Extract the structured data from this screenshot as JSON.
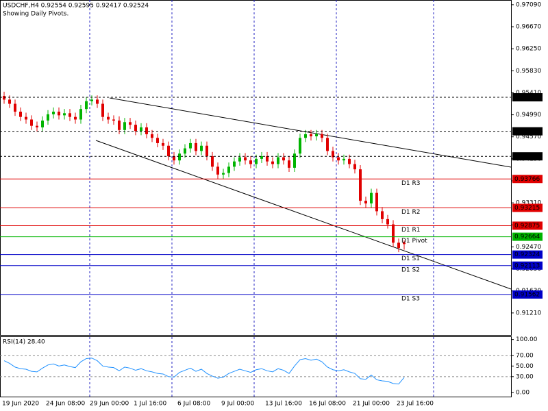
{
  "chart_data": [
    {
      "type": "candlestick",
      "title": "USDCHF,H4  0.92554 0.92595 0.92417 0.92524",
      "subtitle": "Showing Daily Pivots.",
      "categories": [
        "19 Jun 2020",
        null,
        null,
        null,
        null,
        null,
        null,
        null,
        "24 Jun 08:00",
        null,
        null,
        null,
        null,
        null,
        null,
        null,
        "29 Jun 00:00",
        null,
        null,
        null,
        null,
        null,
        null,
        null,
        "1 Jul 16:00",
        null,
        null,
        null,
        null,
        null,
        null,
        null,
        "6 Jul 08:00",
        null,
        null,
        null,
        null,
        null,
        null,
        null,
        "9 Jul 00:00",
        null,
        null,
        null,
        null,
        null,
        null,
        null,
        "13 Jul 16:00",
        null,
        null,
        null,
        null,
        null,
        null,
        null,
        "16 Jul 08:00",
        null,
        null,
        null,
        null,
        null,
        null,
        null,
        "21 Jul 00:00",
        null,
        null,
        null,
        null,
        null,
        null,
        null,
        "23 Jul 16:00",
        null
      ],
      "open": [
        0.9535,
        0.9528,
        0.952,
        0.9505,
        0.9495,
        0.949,
        0.9478,
        0.9475,
        0.9488,
        0.95,
        0.9505,
        0.9498,
        0.9502,
        0.9495,
        0.949,
        0.951,
        0.9525,
        0.9528,
        0.952,
        0.9495,
        0.949,
        0.9488,
        0.947,
        0.9485,
        0.948,
        0.9468,
        0.9475,
        0.9462,
        0.9455,
        0.9445,
        0.944,
        0.942,
        0.9412,
        0.9425,
        0.9435,
        0.9445,
        0.943,
        0.944,
        0.942,
        0.94,
        0.9385,
        0.9388,
        0.94,
        0.941,
        0.9418,
        0.9412,
        0.9405,
        0.9415,
        0.942,
        0.941,
        0.9405,
        0.9418,
        0.9412,
        0.9398,
        0.9425,
        0.9455,
        0.9462,
        0.9458,
        0.9462,
        0.9455,
        0.943,
        0.9418,
        0.9412,
        0.9415,
        0.9405,
        0.9395,
        0.9335,
        0.933,
        0.935,
        0.9315,
        0.93,
        0.929,
        0.9255,
        0.92554
      ],
      "high": [
        0.9543,
        0.9536,
        0.9528,
        0.9513,
        0.9503,
        0.9498,
        0.9486,
        0.9496,
        0.9508,
        0.9513,
        0.9513,
        0.951,
        0.951,
        0.9503,
        0.9518,
        0.9533,
        0.9536,
        0.9536,
        0.9528,
        0.9503,
        0.9498,
        0.9496,
        0.9493,
        0.9493,
        0.9488,
        0.9483,
        0.9483,
        0.947,
        0.9463,
        0.9453,
        0.9448,
        0.9428,
        0.9433,
        0.9443,
        0.9453,
        0.9453,
        0.9448,
        0.9448,
        0.9428,
        0.9408,
        0.9396,
        0.9408,
        0.9418,
        0.9426,
        0.9426,
        0.942,
        0.9423,
        0.9428,
        0.9428,
        0.9418,
        0.9426,
        0.9426,
        0.942,
        0.9433,
        0.9463,
        0.947,
        0.947,
        0.947,
        0.947,
        0.9463,
        0.9438,
        0.9426,
        0.9423,
        0.9423,
        0.9413,
        0.9403,
        0.9343,
        0.9358,
        0.9358,
        0.9323,
        0.9308,
        0.9298,
        0.9263,
        0.92595
      ],
      "low": [
        0.952,
        0.9512,
        0.9497,
        0.9487,
        0.9482,
        0.947,
        0.9467,
        0.9467,
        0.948,
        0.9492,
        0.949,
        0.949,
        0.9487,
        0.9482,
        0.9482,
        0.9502,
        0.9517,
        0.9512,
        0.9487,
        0.9482,
        0.948,
        0.9462,
        0.9462,
        0.9472,
        0.946,
        0.946,
        0.9454,
        0.9447,
        0.9437,
        0.9432,
        0.9412,
        0.9404,
        0.9404,
        0.9417,
        0.9427,
        0.9422,
        0.9422,
        0.9412,
        0.9392,
        0.9377,
        0.9377,
        0.938,
        0.9392,
        0.9402,
        0.9404,
        0.9397,
        0.9397,
        0.9407,
        0.9402,
        0.9397,
        0.9397,
        0.9404,
        0.939,
        0.939,
        0.9417,
        0.9447,
        0.945,
        0.945,
        0.9447,
        0.9422,
        0.941,
        0.9404,
        0.9404,
        0.9397,
        0.9387,
        0.9327,
        0.9322,
        0.9322,
        0.9307,
        0.9292,
        0.9282,
        0.9247,
        0.9237,
        0.92417
      ],
      "close": [
        0.9528,
        0.952,
        0.9505,
        0.9495,
        0.949,
        0.9478,
        0.9475,
        0.9488,
        0.95,
        0.9505,
        0.9498,
        0.9502,
        0.9495,
        0.949,
        0.951,
        0.9525,
        0.9528,
        0.952,
        0.9495,
        0.949,
        0.9488,
        0.947,
        0.9485,
        0.948,
        0.9468,
        0.9475,
        0.9462,
        0.9455,
        0.9445,
        0.944,
        0.942,
        0.9412,
        0.9425,
        0.9435,
        0.9445,
        0.943,
        0.944,
        0.942,
        0.94,
        0.9385,
        0.9388,
        0.94,
        0.941,
        0.9418,
        0.9412,
        0.9405,
        0.9415,
        0.942,
        0.941,
        0.9405,
        0.9418,
        0.9412,
        0.9398,
        0.9425,
        0.9455,
        0.9462,
        0.9458,
        0.9462,
        0.9455,
        0.943,
        0.9418,
        0.9412,
        0.9415,
        0.9405,
        0.9395,
        0.9335,
        0.933,
        0.935,
        0.9315,
        0.93,
        0.929,
        0.9255,
        0.9245,
        0.92524
      ],
      "up_color": "#00b400",
      "down_color": "#e00000",
      "ylim": [
        0.9079,
        0.9718
      ],
      "yticks": [
        {
          "value": 0.9709,
          "label": "0.97090"
        },
        {
          "value": 0.9667,
          "label": "0.96670"
        },
        {
          "value": 0.9625,
          "label": "0.96250"
        },
        {
          "value": 0.9583,
          "label": "0.95830"
        },
        {
          "value": 0.9541,
          "label": "0.95410"
        },
        {
          "value": 0.9499,
          "label": "0.94990"
        },
        {
          "value": 0.9457,
          "label": "0.94570"
        },
        {
          "value": 0.9415,
          "label": "0.94150"
        },
        {
          "value": 0.9373,
          "label": "0.93730"
        },
        {
          "value": 0.9331,
          "label": "0.93310"
        },
        {
          "value": 0.9289,
          "label": "0.92890"
        },
        {
          "value": 0.9247,
          "label": "0.92470"
        },
        {
          "value": 0.9205,
          "label": "0.92050"
        },
        {
          "value": 0.9163,
          "label": "0.91630"
        },
        {
          "value": 0.9121,
          "label": "0.91210"
        }
      ],
      "levels": [
        {
          "value": 0.95324,
          "color": "#000000"
        },
        {
          "value": 0.94675,
          "color": "#000000"
        },
        {
          "value": 0.94198,
          "color": "#000000"
        },
        {
          "name": "D1 R3",
          "value": 0.93766,
          "color": "#e00000"
        },
        {
          "name": "D1 R2",
          "value": 0.93215,
          "color": "#e00000"
        },
        {
          "name": "D1 R1",
          "value": 0.92875,
          "color": "#e00000"
        },
        {
          "name": "D1 Pivot",
          "value": 0.92664,
          "color": "#00b400"
        },
        {
          "name": "D1 S1",
          "value": 0.92324,
          "color": "#0000c8"
        },
        {
          "name": "D1 S2",
          "value": 0.92113,
          "color": "#0000c8"
        },
        {
          "name": "D1 S3",
          "value": 0.91562,
          "color": "#0000c8"
        }
      ]
    },
    {
      "type": "line",
      "title": "RSI(14) 28.40",
      "color": "#1e90ff",
      "values": [
        60,
        55,
        48,
        45,
        44,
        40,
        39,
        46,
        52,
        54,
        50,
        52,
        49,
        47,
        58,
        64,
        65,
        60,
        50,
        48,
        47,
        41,
        48,
        46,
        42,
        45,
        41,
        39,
        36,
        35,
        30,
        29,
        38,
        42,
        46,
        40,
        44,
        36,
        31,
        27,
        29,
        36,
        40,
        44,
        41,
        38,
        43,
        45,
        41,
        39,
        45,
        42,
        36,
        50,
        62,
        64,
        61,
        63,
        58,
        48,
        43,
        41,
        43,
        39,
        36,
        26,
        25,
        33,
        24,
        22,
        21,
        17,
        16,
        28.4
      ],
      "ylim": [
        -9,
        106
      ],
      "yticks": [
        {
          "value": 100,
          "label": "100.00"
        },
        {
          "value": 70,
          "label": "70.00"
        },
        {
          "value": 50,
          "label": "50.00"
        },
        {
          "value": 30,
          "label": "30.00"
        },
        {
          "value": 0,
          "label": "0.00"
        }
      ],
      "levels": [
        70,
        30
      ]
    }
  ]
}
